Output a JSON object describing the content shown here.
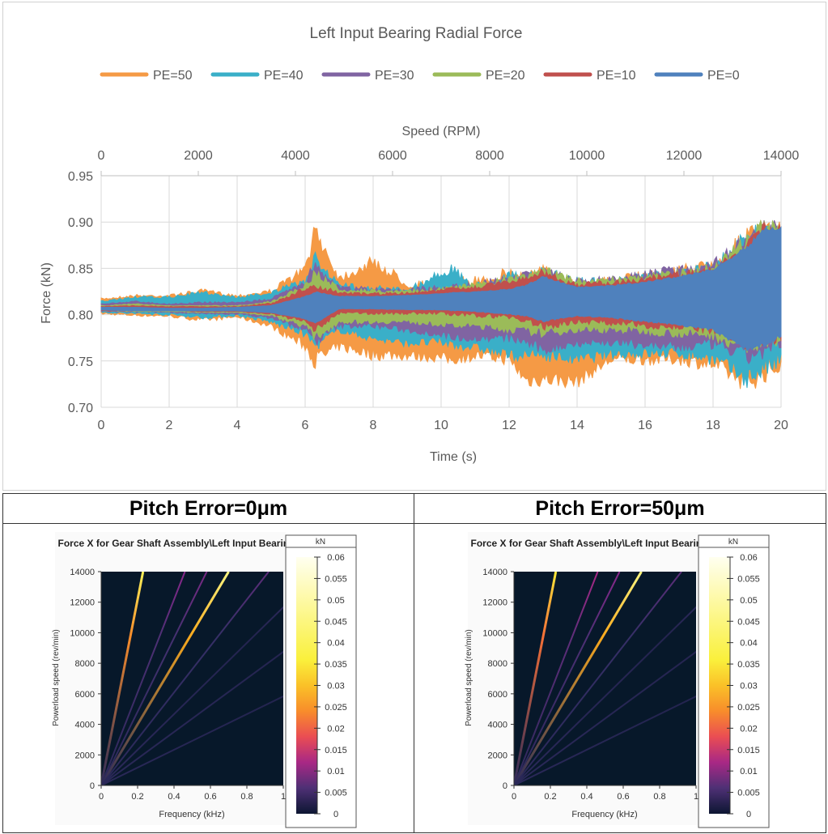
{
  "chart_data": [
    {
      "type": "area",
      "title": "Left Input Bearing Radial Force",
      "xlabel": "Time (s)",
      "x2label": "Speed (RPM)",
      "ylabel": "Force (kN)",
      "xlim": [
        0,
        20
      ],
      "x2lim": [
        0,
        14000
      ],
      "ylim": [
        0.7,
        0.95
      ],
      "xticks": [
        0,
        2,
        4,
        6,
        8,
        10,
        12,
        14,
        16,
        18,
        20
      ],
      "x2ticks": [
        0,
        2000,
        4000,
        6000,
        8000,
        10000,
        12000,
        14000
      ],
      "yticks": [
        "0.70",
        "0.75",
        "0.80",
        "0.85",
        "0.90",
        "0.95"
      ],
      "grid": true,
      "legend": "top",
      "x": [
        0,
        1,
        2,
        3,
        4,
        5,
        6,
        6.3,
        7,
        8,
        9,
        10,
        10.3,
        11,
        12,
        12.5,
        13,
        14,
        15,
        16,
        17,
        18,
        19,
        19.5,
        20
      ],
      "series": [
        {
          "name": "PE=50",
          "color": "#F59A45",
          "upper": [
            0.818,
            0.822,
            0.822,
            0.828,
            0.822,
            0.828,
            0.855,
            0.902,
            0.845,
            0.864,
            0.84,
            0.835,
            0.84,
            0.842,
            0.852,
            0.85,
            0.855,
            0.84,
            0.842,
            0.848,
            0.855,
            0.86,
            0.895,
            0.905,
            0.9
          ],
          "lower": [
            0.8,
            0.798,
            0.797,
            0.792,
            0.796,
            0.785,
            0.76,
            0.74,
            0.76,
            0.75,
            0.75,
            0.748,
            0.745,
            0.75,
            0.745,
            0.72,
            0.722,
            0.72,
            0.745,
            0.745,
            0.745,
            0.738,
            0.715,
            0.725,
            0.735
          ]
        },
        {
          "name": "PE=40",
          "color": "#3AAFC8",
          "upper": [
            0.815,
            0.82,
            0.82,
            0.826,
            0.82,
            0.826,
            0.84,
            0.868,
            0.835,
            0.832,
            0.83,
            0.85,
            0.855,
            0.835,
            0.848,
            0.845,
            0.852,
            0.842,
            0.84,
            0.846,
            0.852,
            0.858,
            0.893,
            0.905,
            0.9
          ],
          "lower": [
            0.802,
            0.8,
            0.799,
            0.795,
            0.798,
            0.79,
            0.775,
            0.76,
            0.78,
            0.77,
            0.765,
            0.765,
            0.762,
            0.76,
            0.75,
            0.75,
            0.75,
            0.745,
            0.752,
            0.752,
            0.752,
            0.745,
            0.72,
            0.73,
            0.74
          ]
        },
        {
          "name": "PE=30",
          "color": "#8064A2",
          "upper": [
            0.812,
            0.815,
            0.812,
            0.814,
            0.814,
            0.818,
            0.84,
            0.86,
            0.832,
            0.83,
            0.83,
            0.832,
            0.834,
            0.835,
            0.845,
            0.848,
            0.852,
            0.84,
            0.842,
            0.848,
            0.855,
            0.86,
            0.89,
            0.905,
            0.9
          ],
          "lower": [
            0.803,
            0.802,
            0.802,
            0.8,
            0.8,
            0.795,
            0.78,
            0.765,
            0.785,
            0.785,
            0.78,
            0.775,
            0.772,
            0.77,
            0.77,
            0.765,
            0.755,
            0.765,
            0.765,
            0.762,
            0.758,
            0.762,
            0.745,
            0.75,
            0.758
          ]
        },
        {
          "name": "PE=20",
          "color": "#9BBB59",
          "upper": [
            0.81,
            0.812,
            0.81,
            0.81,
            0.81,
            0.815,
            0.835,
            0.85,
            0.83,
            0.828,
            0.828,
            0.83,
            0.832,
            0.835,
            0.842,
            0.846,
            0.853,
            0.84,
            0.842,
            0.845,
            0.85,
            0.855,
            0.888,
            0.905,
            0.9
          ],
          "lower": [
            0.804,
            0.803,
            0.803,
            0.802,
            0.802,
            0.798,
            0.785,
            0.77,
            0.79,
            0.79,
            0.79,
            0.787,
            0.785,
            0.785,
            0.78,
            0.778,
            0.775,
            0.78,
            0.78,
            0.778,
            0.775,
            0.772,
            0.755,
            0.76,
            0.765
          ]
        },
        {
          "name": "PE=10",
          "color": "#C0504D",
          "upper": [
            0.809,
            0.81,
            0.809,
            0.809,
            0.809,
            0.813,
            0.83,
            0.835,
            0.825,
            0.824,
            0.825,
            0.828,
            0.83,
            0.832,
            0.838,
            0.842,
            0.85,
            0.835,
            0.838,
            0.842,
            0.847,
            0.852,
            0.885,
            0.9,
            0.898
          ],
          "lower": [
            0.804,
            0.804,
            0.804,
            0.803,
            0.803,
            0.8,
            0.79,
            0.78,
            0.8,
            0.8,
            0.8,
            0.8,
            0.798,
            0.797,
            0.795,
            0.79,
            0.782,
            0.79,
            0.788,
            0.785,
            0.782,
            0.778,
            0.76,
            0.765,
            0.77
          ]
        },
        {
          "name": "PE=0",
          "color": "#4F81BD",
          "upper": [
            0.808,
            0.808,
            0.807,
            0.807,
            0.808,
            0.81,
            0.82,
            0.825,
            0.82,
            0.82,
            0.821,
            0.823,
            0.824,
            0.825,
            0.828,
            0.832,
            0.842,
            0.83,
            0.832,
            0.836,
            0.842,
            0.85,
            0.875,
            0.895,
            0.895
          ],
          "lower": [
            0.805,
            0.804,
            0.804,
            0.804,
            0.804,
            0.802,
            0.795,
            0.79,
            0.806,
            0.806,
            0.805,
            0.805,
            0.804,
            0.803,
            0.8,
            0.798,
            0.792,
            0.798,
            0.796,
            0.792,
            0.788,
            0.782,
            0.76,
            0.765,
            0.775
          ]
        }
      ]
    },
    {
      "type": "heatmap",
      "header": "Pitch Error=0μm",
      "title": "Force X for Gear Shaft Assembly\\Left Input Bearing",
      "xlabel": "Frequency (kHz)",
      "ylabel": "Powerload speed (rev/min)",
      "xlim": [
        0,
        1
      ],
      "ylim": [
        0,
        14000
      ],
      "xticks": [
        "0",
        "0.2",
        "0.4",
        "0.6",
        "0.8",
        "1"
      ],
      "yticks": [
        "0",
        "2000",
        "4000",
        "6000",
        "8000",
        "10000",
        "12000",
        "14000"
      ],
      "colorbar": {
        "label": "kN",
        "range": [
          0,
          0.06
        ],
        "ticks": [
          "0",
          "0.005",
          "0.01",
          "0.015",
          "0.02",
          "0.025",
          "0.03",
          "0.035",
          "0.04",
          "0.045",
          "0.05",
          "0.055",
          "0.06"
        ]
      },
      "lines": [
        {
          "freq_at_14000": 0.23,
          "peak": 0.04
        },
        {
          "freq_at_14000": 0.46,
          "peak": 0.01
        },
        {
          "freq_at_14000": 0.58,
          "peak": 0.009
        },
        {
          "freq_at_14000": 0.7,
          "peak": 0.045
        },
        {
          "freq_at_14000": 0.92,
          "peak": 0.007
        },
        {
          "freq_at_14000": 1.2,
          "peak": 0.004
        },
        {
          "freq_at_14000": 1.6,
          "peak": 0.004
        },
        {
          "freq_at_14000": 2.4,
          "peak": 0.003
        }
      ]
    },
    {
      "type": "heatmap",
      "header": "Pitch Error=50μm",
      "title": "Force X for Gear Shaft Assembly\\Left Input Bearing",
      "xlabel": "Frequency (kHz)",
      "ylabel": "Powerload speed (rev/min)",
      "xlim": [
        0,
        1
      ],
      "ylim": [
        0,
        14000
      ],
      "xticks": [
        "0",
        "0.2",
        "0.4",
        "0.6",
        "0.8",
        "1"
      ],
      "yticks": [
        "0",
        "2000",
        "4000",
        "6000",
        "8000",
        "10000",
        "12000",
        "14000"
      ],
      "colorbar": {
        "label": "kN",
        "range": [
          0,
          0.06
        ],
        "ticks": [
          "0",
          "0.005",
          "0.01",
          "0.015",
          "0.02",
          "0.025",
          "0.03",
          "0.035",
          "0.04",
          "0.045",
          "0.05",
          "0.055",
          "0.06"
        ]
      },
      "lines": [
        {
          "freq_at_14000": 0.23,
          "peak": 0.035
        },
        {
          "freq_at_14000": 0.46,
          "peak": 0.012
        },
        {
          "freq_at_14000": 0.58,
          "peak": 0.01
        },
        {
          "freq_at_14000": 0.7,
          "peak": 0.045
        },
        {
          "freq_at_14000": 0.92,
          "peak": 0.007
        },
        {
          "freq_at_14000": 1.2,
          "peak": 0.004
        },
        {
          "freq_at_14000": 1.6,
          "peak": 0.004
        },
        {
          "freq_at_14000": 2.4,
          "peak": 0.003
        }
      ]
    }
  ]
}
